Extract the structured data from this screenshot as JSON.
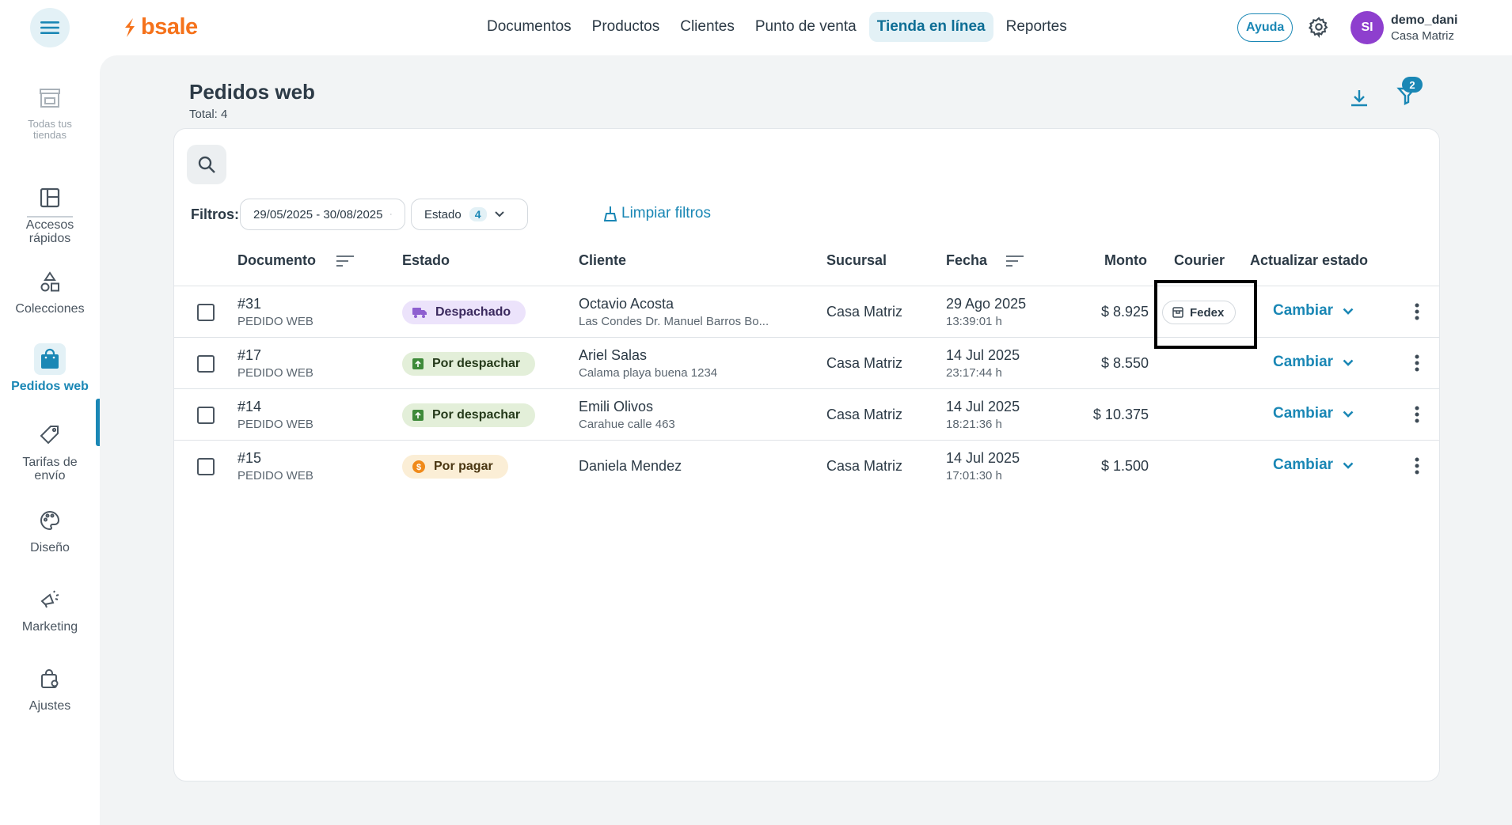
{
  "header": {
    "logo_text": "bsale",
    "nav": [
      {
        "label": "Documentos"
      },
      {
        "label": "Productos"
      },
      {
        "label": "Clientes"
      },
      {
        "label": "Punto de venta"
      },
      {
        "label": "Tienda en línea"
      },
      {
        "label": "Reportes"
      }
    ],
    "active_nav": "Tienda en línea",
    "help_label": "Ayuda",
    "user": {
      "initials": "SI",
      "name": "demo_dani",
      "branch": "Casa Matriz"
    },
    "colors": {
      "brand_orange": "#f5721b",
      "accent": "#1a87b5",
      "avatar": "#8e3fce"
    }
  },
  "sidebar": {
    "items": [
      {
        "label": "Todas tus tiendas",
        "icon": "store-icon"
      },
      {
        "label": "Accesos rápidos",
        "icon": "layout-icon"
      },
      {
        "label": "Colecciones",
        "icon": "shapes-icon"
      },
      {
        "label": "Pedidos web",
        "icon": "shopping-bag-icon",
        "active": true
      },
      {
        "label": "Tarifas de envío",
        "icon": "tag-icon"
      },
      {
        "label": "Diseño",
        "icon": "palette-icon"
      },
      {
        "label": "Marketing",
        "icon": "megaphone-icon"
      },
      {
        "label": "Ajustes",
        "icon": "settings-bag-icon"
      }
    ]
  },
  "page": {
    "title": "Pedidos web",
    "total": "Total: 4",
    "filter_badge": "2"
  },
  "filters": {
    "label": "Filtros:",
    "date_range": "29/05/2025 - 30/08/2025",
    "estado_label": "Estado",
    "estado_count": "4",
    "clear_label": "Limpiar filtros"
  },
  "table": {
    "columns": {
      "documento": "Documento",
      "estado": "Estado",
      "cliente": "Cliente",
      "sucursal": "Sucursal",
      "fecha": "Fecha",
      "monto": "Monto",
      "courier": "Courier",
      "actualizar": "Actualizar estado"
    },
    "change_label": "Cambiar",
    "rows": [
      {
        "doc": "#31",
        "doc_type": "PEDIDO WEB",
        "status": "Despachado",
        "status_kind": "despachado",
        "client": "Octavio Acosta",
        "address": "Las Condes Dr. Manuel Barros Bo...",
        "branch": "Casa Matriz",
        "date": "29 Ago 2025",
        "time": "13:39:01 h",
        "amount": "$ 8.925",
        "courier": "Fedex"
      },
      {
        "doc": "#17",
        "doc_type": "PEDIDO WEB",
        "status": "Por despachar",
        "status_kind": "por-despachar",
        "client": "Ariel Salas",
        "address": "Calama playa buena 1234",
        "branch": "Casa Matriz",
        "date": "14 Jul 2025",
        "time": "23:17:44 h",
        "amount": "$ 8.550",
        "courier": ""
      },
      {
        "doc": "#14",
        "doc_type": "PEDIDO WEB",
        "status": "Por despachar",
        "status_kind": "por-despachar",
        "client": "Emili Olivos",
        "address": "Carahue calle 463",
        "branch": "Casa Matriz",
        "date": "14 Jul 2025",
        "time": "18:21:36 h",
        "amount": "$ 10.375",
        "courier": ""
      },
      {
        "doc": "#15",
        "doc_type": "PEDIDO WEB",
        "status": "Por pagar",
        "status_kind": "por-pagar",
        "client": "Daniela Mendez",
        "address": "",
        "branch": "Casa Matriz",
        "date": "14 Jul 2025",
        "time": "17:01:30 h",
        "amount": "$ 1.500",
        "courier": ""
      }
    ]
  }
}
